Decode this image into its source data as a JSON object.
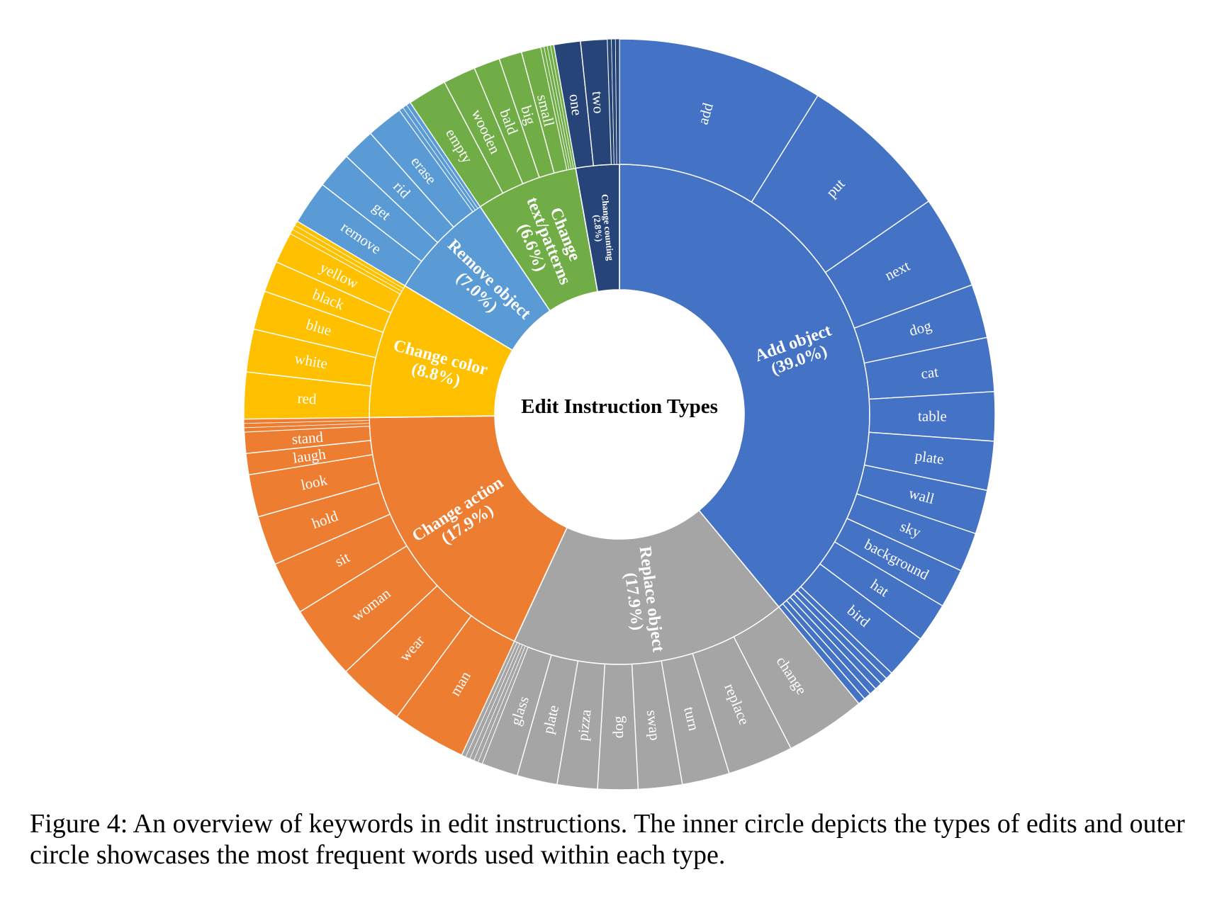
{
  "chart_data": {
    "type": "sunburst",
    "title": "Edit Instruction Types",
    "categories": [
      {
        "name": "Add object",
        "share": 39.0,
        "label_line1": "Add object",
        "label_line2": "(39.0%)",
        "color": "#4472C4",
        "children": [
          {
            "name": "add",
            "value": 4.2
          },
          {
            "name": "put",
            "value": 3.1
          },
          {
            "name": "next",
            "value": 1.9
          },
          {
            "name": "dog",
            "value": 1.1
          },
          {
            "name": "cat",
            "value": 1.1
          },
          {
            "name": "table",
            "value": 1.0
          },
          {
            "name": "plate",
            "value": 1.0
          },
          {
            "name": "wall",
            "value": 0.9
          },
          {
            "name": "sky",
            "value": 0.8
          },
          {
            "name": "background",
            "value": 0.8
          },
          {
            "name": "hat",
            "value": 0.8
          },
          {
            "name": "bird",
            "value": 0.9
          },
          {
            "name": "",
            "value": 0.15
          },
          {
            "name": "",
            "value": 0.15
          },
          {
            "name": "",
            "value": 0.15
          },
          {
            "name": "",
            "value": 0.15
          },
          {
            "name": "",
            "value": 0.15
          },
          {
            "name": "",
            "value": 0.15
          }
        ]
      },
      {
        "name": "Replace object",
        "share": 17.9,
        "label_line1": "Replace object",
        "label_line2": "(17.9%)",
        "color": "#A5A5A5",
        "children": [
          {
            "name": "change",
            "value": 2.2
          },
          {
            "name": "replace",
            "value": 1.8
          },
          {
            "name": "turn",
            "value": 1.3
          },
          {
            "name": "swap",
            "value": 1.2
          },
          {
            "name": "dog",
            "value": 1.1
          },
          {
            "name": "pizza",
            "value": 1.1
          },
          {
            "name": "plate",
            "value": 1.1
          },
          {
            "name": "glass",
            "value": 1.0
          },
          {
            "name": "",
            "value": 0.12
          },
          {
            "name": "",
            "value": 0.12
          },
          {
            "name": "",
            "value": 0.12
          },
          {
            "name": "",
            "value": 0.12
          },
          {
            "name": "",
            "value": 0.12
          }
        ]
      },
      {
        "name": "Change action",
        "share": 17.9,
        "label_line1": "Change action",
        "label_line2": "(17.9%)",
        "color": "#ED7D31",
        "children": [
          {
            "name": "man",
            "value": 2.1
          },
          {
            "name": "wear",
            "value": 1.9
          },
          {
            "name": "woman",
            "value": 2.1
          },
          {
            "name": "sit",
            "value": 1.5
          },
          {
            "name": "hold",
            "value": 1.4
          },
          {
            "name": "look",
            "value": 1.2
          },
          {
            "name": "laugh",
            "value": 0.6
          },
          {
            "name": "stand",
            "value": 0.6
          },
          {
            "name": "",
            "value": 0.12
          },
          {
            "name": "",
            "value": 0.12
          },
          {
            "name": "",
            "value": 0.12
          }
        ]
      },
      {
        "name": "Change color",
        "share": 8.8,
        "label_line1": "Change color",
        "label_line2": "(8.8%)",
        "color": "#FFC000",
        "children": [
          {
            "name": "red",
            "value": 1.2
          },
          {
            "name": "white",
            "value": 1.1
          },
          {
            "name": "blue",
            "value": 1.0
          },
          {
            "name": "black",
            "value": 0.8
          },
          {
            "name": "yellow",
            "value": 0.8
          },
          {
            "name": "",
            "value": 0.12
          },
          {
            "name": "",
            "value": 0.12
          },
          {
            "name": "",
            "value": 0.12
          }
        ]
      },
      {
        "name": "Remove object",
        "share": 7.0,
        "label_line1": "Remove object",
        "label_line2": "(7.0%)",
        "color": "#5B9BD5",
        "children": [
          {
            "name": "remove",
            "value": 1.2
          },
          {
            "name": "get",
            "value": 1.0
          },
          {
            "name": "rid",
            "value": 0.9
          },
          {
            "name": "erase",
            "value": 1.0
          },
          {
            "name": "",
            "value": 0.12
          },
          {
            "name": "",
            "value": 0.12
          },
          {
            "name": "",
            "value": 0.12
          }
        ]
      },
      {
        "name": "Change text/patterns",
        "share": 6.6,
        "label_line1": "Change",
        "label_line2": "text/patterns",
        "label_line3": "(6.6%)",
        "color": "#70AD47",
        "children": [
          {
            "name": "empty",
            "value": 1.2
          },
          {
            "name": "wooden",
            "value": 1.0
          },
          {
            "name": "bald",
            "value": 0.8
          },
          {
            "name": "big",
            "value": 0.7
          },
          {
            "name": "small",
            "value": 0.6
          },
          {
            "name": "",
            "value": 0.1
          },
          {
            "name": "",
            "value": 0.1
          },
          {
            "name": "",
            "value": 0.1
          },
          {
            "name": "",
            "value": 0.1
          }
        ]
      },
      {
        "name": "Change counting",
        "share": 2.8,
        "label_line1": "Change counting",
        "label_line2": "(2.8%)",
        "color": "#264478",
        "children": [
          {
            "name": "one",
            "value": 1.0
          },
          {
            "name": "two",
            "value": 1.0
          },
          {
            "name": "",
            "value": 0.15
          },
          {
            "name": "",
            "value": 0.15
          },
          {
            "name": "",
            "value": 0.15
          }
        ]
      }
    ]
  },
  "caption": "Figure 4: An overview of keywords in edit instructions. The inner circle depicts the types of edits and outer circle showcases the most frequent words used within each type."
}
